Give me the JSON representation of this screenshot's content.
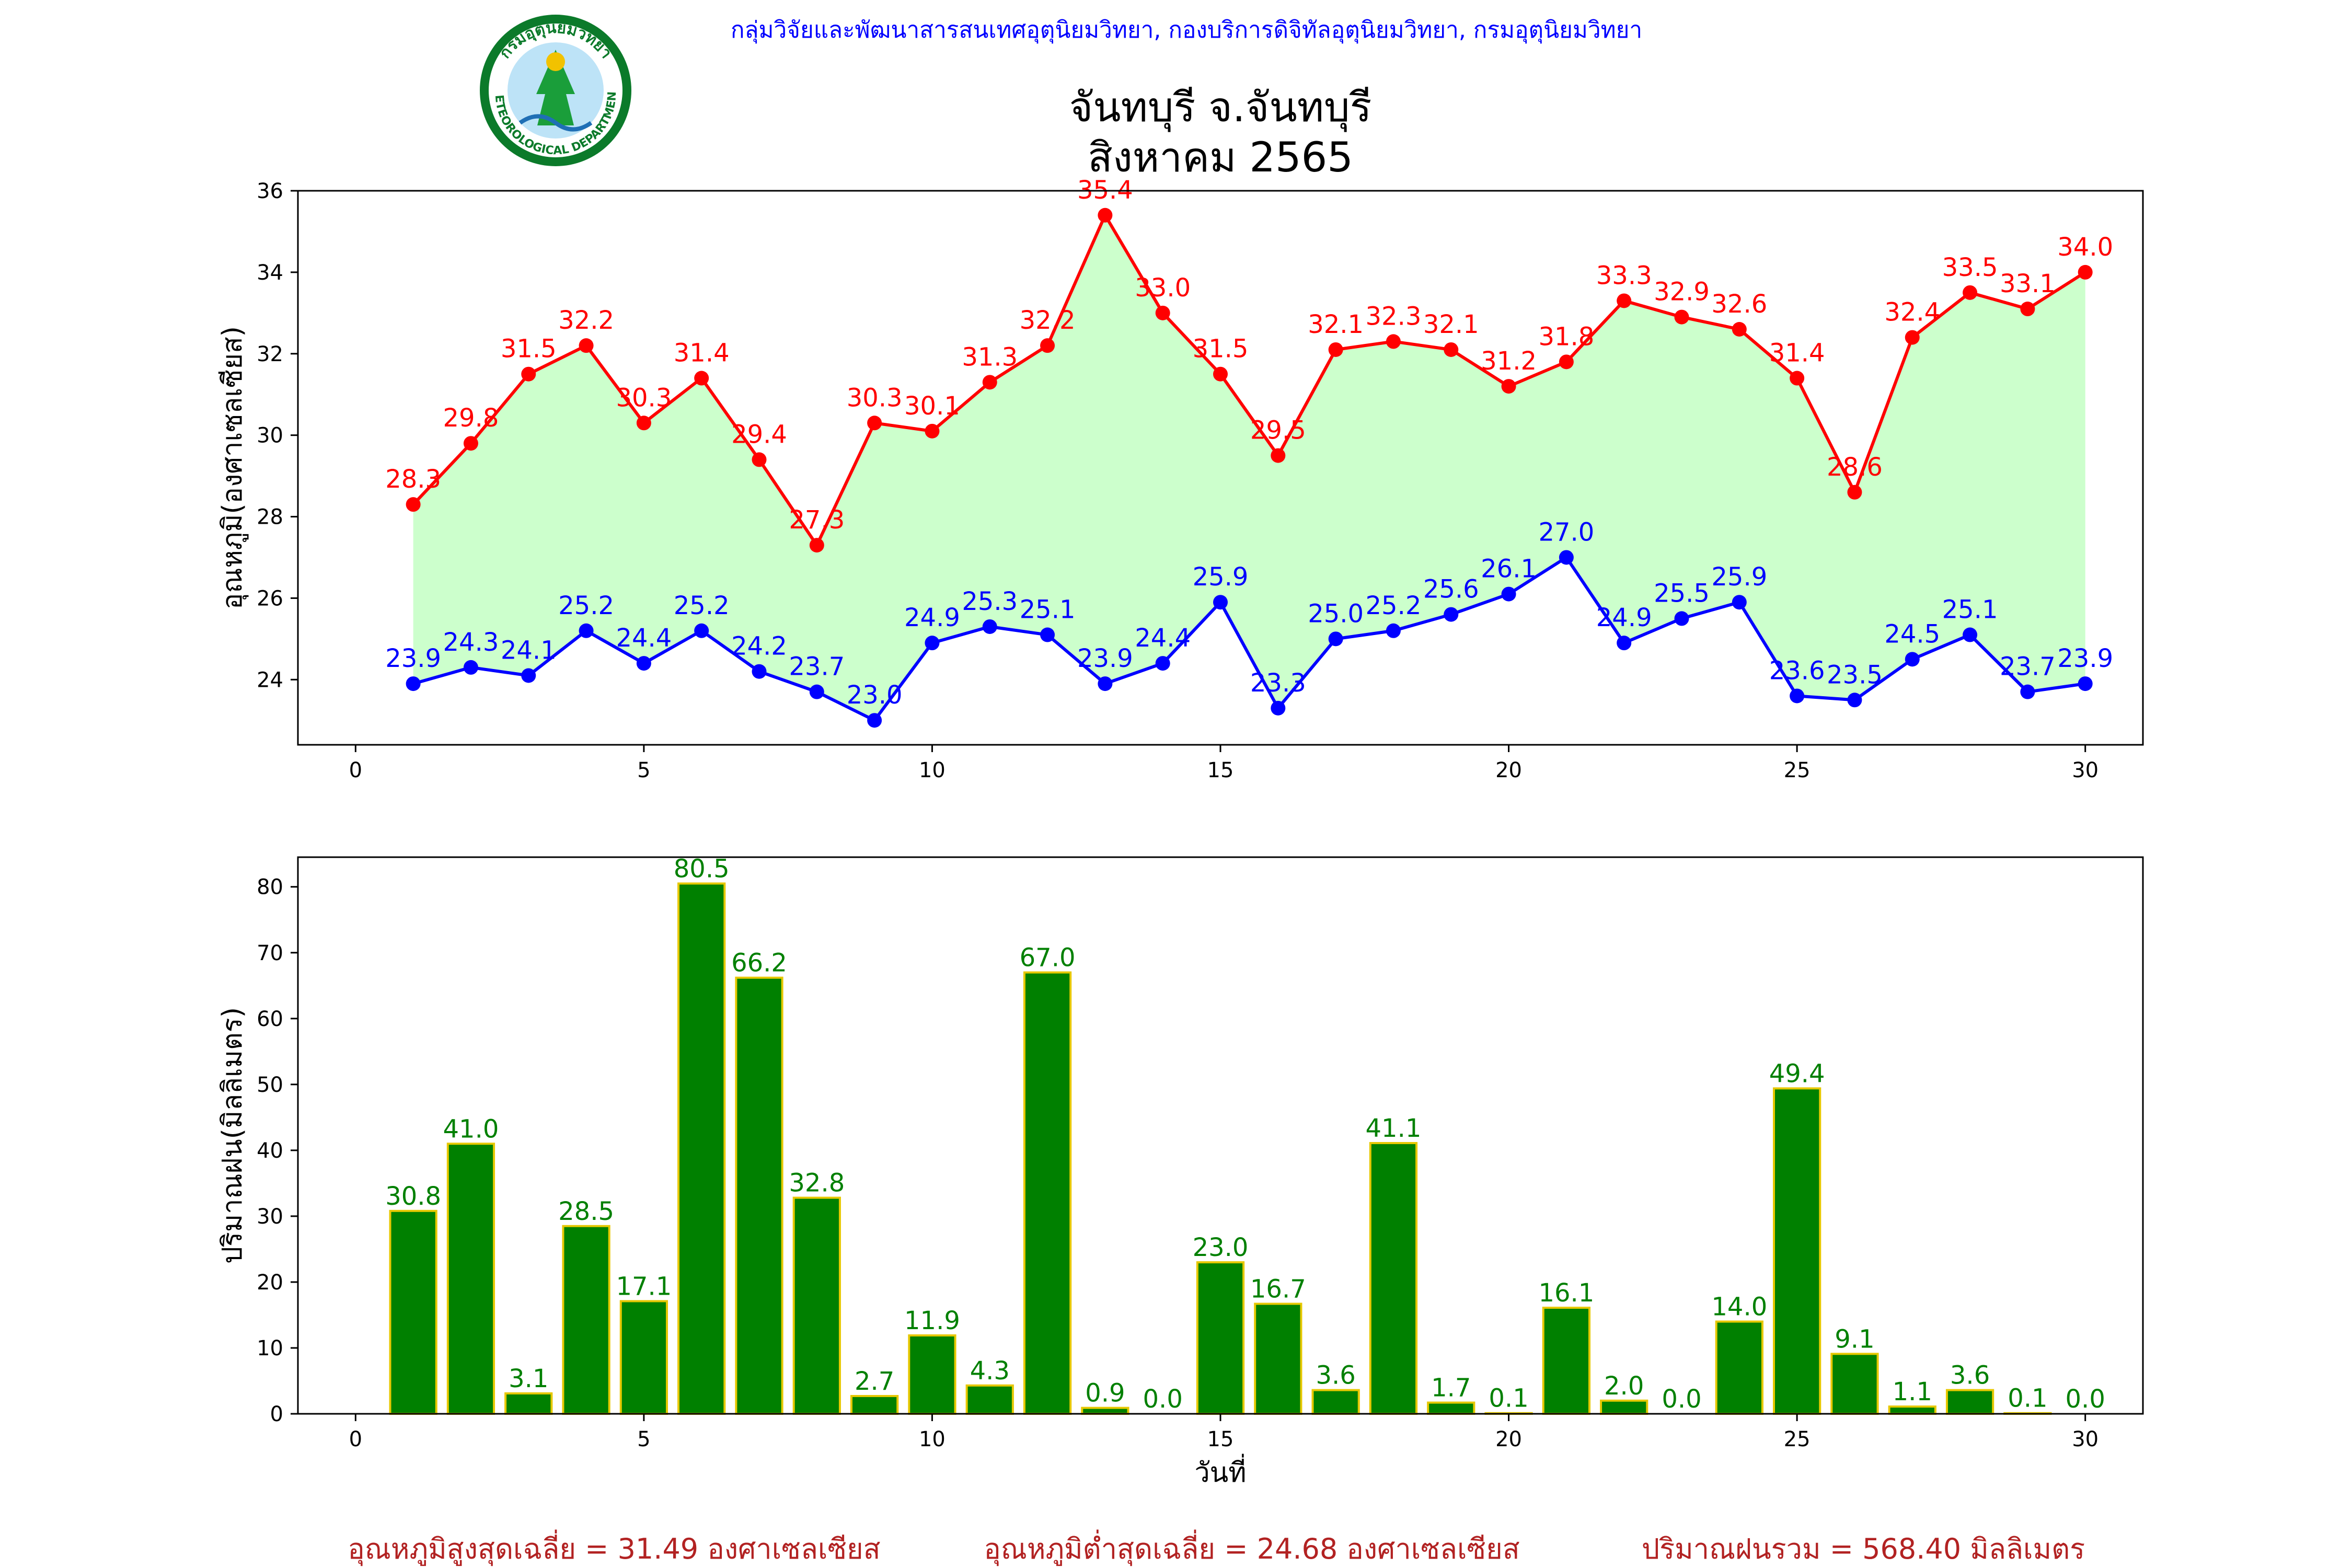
{
  "header": {
    "source_line": "กลุ่มวิจัยและพัฒนาสารสนเทศอุตุนิยมวิทยา, กองบริการดิจิทัลอุตุนิยมวิทยา, กรมอุตุนิยมวิทยา",
    "title_line1": "จันทบุรี จ.จันทบุรี",
    "title_line2": "สิงหาคม 2565",
    "logo_text_top": "กรมอุตุนิยมวิทยา",
    "logo_text_bottom": "METEOROLOGICAL DEPARTMENT"
  },
  "colors": {
    "max_temp": "#ff0000",
    "min_temp": "#0000ff",
    "fill": "#ccffcc",
    "rain_bar": "#008000",
    "rain_edge": "#e6c800",
    "rain_label": "#008000",
    "footer": "#b22222",
    "header_link": "#0000ff"
  },
  "chart_data": [
    {
      "type": "line",
      "ylabel": "อุณหภูมิ(องศาเซลเซียส)",
      "xlabel": "",
      "xlim": [
        -1,
        31
      ],
      "ylim": [
        22.4,
        36
      ],
      "xticks": [
        0,
        5,
        10,
        15,
        20,
        25,
        30
      ],
      "yticks": [
        24,
        26,
        28,
        30,
        32,
        34,
        36
      ],
      "x": [
        1,
        2,
        3,
        4,
        5,
        6,
        7,
        8,
        9,
        10,
        11,
        12,
        13,
        14,
        15,
        16,
        17,
        18,
        19,
        20,
        21,
        22,
        23,
        24,
        25,
        26,
        27,
        28,
        29,
        30
      ],
      "series": [
        {
          "key": "max",
          "values": [
            28.3,
            29.8,
            31.5,
            32.2,
            30.3,
            31.4,
            29.4,
            27.3,
            30.3,
            30.1,
            31.3,
            32.2,
            35.4,
            33.0,
            31.5,
            29.5,
            32.1,
            32.3,
            32.1,
            31.2,
            31.8,
            33.3,
            32.9,
            32.6,
            31.4,
            28.6,
            32.4,
            33.5,
            33.1,
            34.0
          ]
        },
        {
          "key": "min",
          "values": [
            23.9,
            24.3,
            24.1,
            25.2,
            24.4,
            25.2,
            24.2,
            23.7,
            23.0,
            24.9,
            25.3,
            25.1,
            23.9,
            24.4,
            25.9,
            23.3,
            25.0,
            25.2,
            25.6,
            26.1,
            27.0,
            24.9,
            25.5,
            25.9,
            23.6,
            23.5,
            24.5,
            25.1,
            23.7,
            23.9
          ]
        }
      ]
    },
    {
      "type": "bar",
      "ylabel": "ปริมาณฝน(มิลลิเมตร)",
      "xlabel": "วันที่",
      "xlim": [
        -1,
        31
      ],
      "ylim": [
        0,
        84.5
      ],
      "xticks": [
        0,
        5,
        10,
        15,
        20,
        25,
        30
      ],
      "yticks": [
        0,
        10,
        20,
        30,
        40,
        50,
        60,
        70,
        80
      ],
      "x": [
        1,
        2,
        3,
        4,
        5,
        6,
        7,
        8,
        9,
        10,
        11,
        12,
        13,
        14,
        15,
        16,
        17,
        18,
        19,
        20,
        21,
        22,
        23,
        24,
        25,
        26,
        27,
        28,
        29,
        30
      ],
      "values": [
        30.8,
        41.0,
        3.1,
        28.5,
        17.1,
        80.5,
        66.2,
        32.8,
        2.7,
        11.9,
        4.3,
        67.0,
        0.9,
        0.0,
        23.0,
        16.7,
        3.6,
        41.1,
        1.7,
        0.1,
        16.1,
        2.0,
        0.0,
        14.0,
        49.4,
        9.1,
        1.1,
        3.6,
        0.1,
        0.0
      ]
    }
  ],
  "footer": {
    "avg_max": "อุณหภูมิสูงสุดเฉลี่ย = 31.49 องศาเซลเซียส",
    "avg_min": "อุณหภูมิต่ำสุดเฉลี่ย = 24.68 องศาเซลเซียส",
    "total_rain": "ปริมาณฝนรวม = 568.40 มิลลิเมตร"
  }
}
